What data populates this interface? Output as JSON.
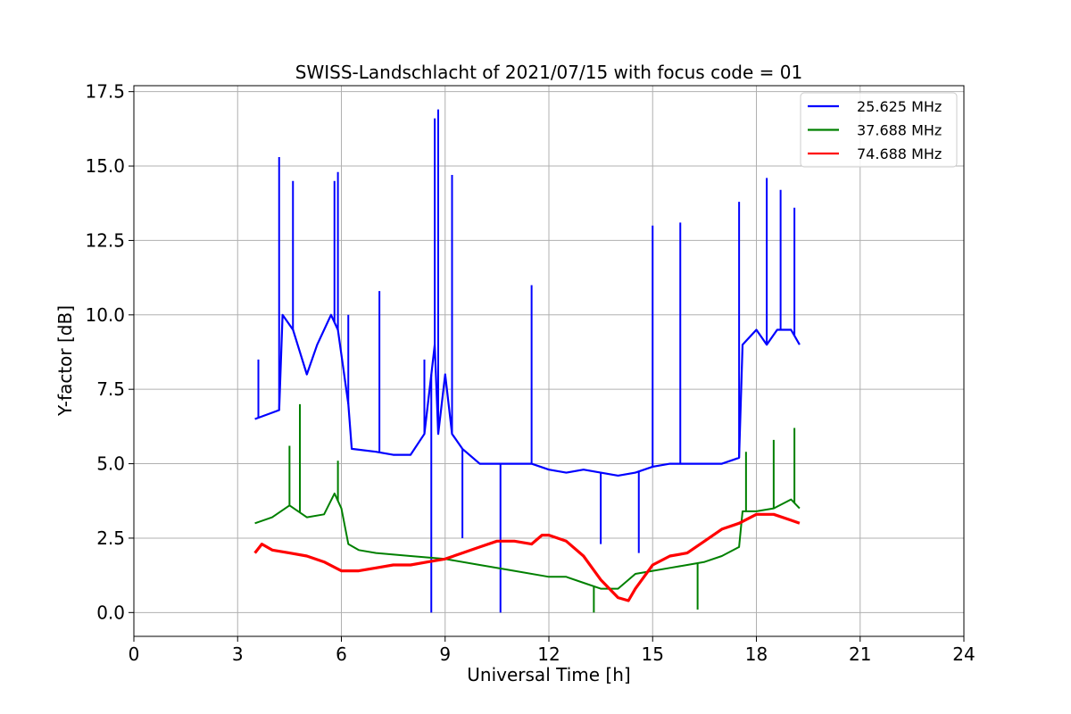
{
  "chart_data": {
    "type": "line",
    "title": "SWISS-Landschlacht of 2021/07/15 with focus code = 01",
    "xlabel": "Universal Time [h]",
    "ylabel": "Y-factor [dB]",
    "xlim": [
      0,
      24
    ],
    "ylim": [
      -0.8,
      17.7
    ],
    "xticks": [
      0,
      3,
      6,
      9,
      12,
      15,
      18,
      21,
      24
    ],
    "xtick_labels": [
      "0",
      "3",
      "6",
      "9",
      "12",
      "15",
      "18",
      "21",
      "24"
    ],
    "yticks": [
      0,
      2.5,
      5,
      7.5,
      10,
      12.5,
      15,
      17.5
    ],
    "ytick_labels": [
      "0.0",
      "2.5",
      "5.0",
      "7.5",
      "10.0",
      "12.5",
      "15.0",
      "17.5"
    ],
    "grid": true,
    "legend_position": "upper-right",
    "series": [
      {
        "name": "25.625 MHz",
        "color": "#0000ff",
        "x": [
          3.5,
          4.2,
          4.3,
          4.6,
          5.0,
          5.3,
          5.7,
          5.9,
          6.2,
          6.3,
          7.0,
          7.5,
          8.0,
          8.4,
          8.6,
          8.7,
          8.8,
          9.0,
          9.2,
          9.5,
          10.0,
          10.5,
          11.0,
          11.5,
          12.0,
          12.5,
          13.0,
          13.5,
          14.0,
          14.5,
          15.0,
          15.5,
          16.0,
          16.5,
          17.0,
          17.5,
          17.6,
          18.0,
          18.3,
          18.6,
          19.0,
          19.25
        ],
        "y": [
          6.5,
          6.8,
          10.0,
          9.5,
          8.0,
          9.0,
          10.0,
          9.5,
          7.0,
          5.5,
          5.4,
          5.3,
          5.3,
          6.0,
          8.0,
          9.0,
          6.0,
          8.0,
          6.0,
          5.5,
          5.0,
          5.0,
          5.0,
          5.0,
          4.8,
          4.7,
          4.8,
          4.7,
          4.6,
          4.7,
          4.9,
          5.0,
          5.0,
          5.0,
          5.0,
          5.2,
          9.0,
          9.5,
          9.0,
          9.5,
          9.5,
          9.0
        ],
        "spikes": [
          [
            3.6,
            8.5
          ],
          [
            4.2,
            15.3
          ],
          [
            4.6,
            14.5
          ],
          [
            5.8,
            14.5
          ],
          [
            5.9,
            14.8
          ],
          [
            6.2,
            10.0
          ],
          [
            7.1,
            10.8
          ],
          [
            8.4,
            8.5
          ],
          [
            8.7,
            16.6
          ],
          [
            8.8,
            16.9
          ],
          [
            9.2,
            14.7
          ],
          [
            11.5,
            11.0
          ],
          [
            15.0,
            13.0
          ],
          [
            15.8,
            13.1
          ],
          [
            17.5,
            13.8
          ],
          [
            18.3,
            14.6
          ],
          [
            18.7,
            14.2
          ],
          [
            19.1,
            13.6
          ]
        ],
        "dips": [
          [
            8.6,
            0.0
          ],
          [
            10.6,
            0.0
          ],
          [
            9.5,
            2.5
          ],
          [
            13.5,
            2.3
          ],
          [
            14.6,
            2.0
          ]
        ]
      },
      {
        "name": "37.688 MHz",
        "color": "#008000",
        "x": [
          3.5,
          4.0,
          4.5,
          5.0,
          5.5,
          5.8,
          6.0,
          6.2,
          6.5,
          7.0,
          8.0,
          9.0,
          10.0,
          11.0,
          12.0,
          12.5,
          13.0,
          13.5,
          14.0,
          14.5,
          15.0,
          15.5,
          16.0,
          16.5,
          17.0,
          17.5,
          17.6,
          18.0,
          18.5,
          19.0,
          19.25
        ],
        "y": [
          3.0,
          3.2,
          3.6,
          3.2,
          3.3,
          4.0,
          3.5,
          2.3,
          2.1,
          2.0,
          1.9,
          1.8,
          1.6,
          1.4,
          1.2,
          1.2,
          1.0,
          0.8,
          0.8,
          1.3,
          1.4,
          1.5,
          1.6,
          1.7,
          1.9,
          2.2,
          3.4,
          3.4,
          3.5,
          3.8,
          3.5
        ],
        "spikes": [
          [
            4.5,
            5.6
          ],
          [
            4.8,
            7.0
          ],
          [
            5.9,
            5.1
          ],
          [
            18.5,
            5.8
          ],
          [
            19.1,
            6.2
          ],
          [
            17.7,
            5.4
          ]
        ],
        "dips": [
          [
            13.3,
            0.0
          ],
          [
            16.3,
            0.1
          ]
        ]
      },
      {
        "name": "74.688 MHz",
        "color": "#ff0000",
        "x": [
          3.5,
          3.7,
          4.0,
          4.5,
          5.0,
          5.5,
          6.0,
          6.5,
          7.0,
          7.5,
          8.0,
          8.5,
          9.0,
          9.5,
          10.0,
          10.5,
          11.0,
          11.5,
          11.8,
          12.0,
          12.5,
          13.0,
          13.5,
          14.0,
          14.3,
          14.5,
          15.0,
          15.5,
          16.0,
          16.5,
          17.0,
          17.5,
          18.0,
          18.5,
          19.0,
          19.25
        ],
        "y": [
          2.0,
          2.3,
          2.1,
          2.0,
          1.9,
          1.7,
          1.4,
          1.4,
          1.5,
          1.6,
          1.6,
          1.7,
          1.8,
          2.0,
          2.2,
          2.4,
          2.4,
          2.3,
          2.6,
          2.6,
          2.4,
          1.9,
          1.1,
          0.5,
          0.4,
          0.8,
          1.6,
          1.9,
          2.0,
          2.4,
          2.8,
          3.0,
          3.3,
          3.3,
          3.1,
          3.0
        ]
      }
    ]
  }
}
